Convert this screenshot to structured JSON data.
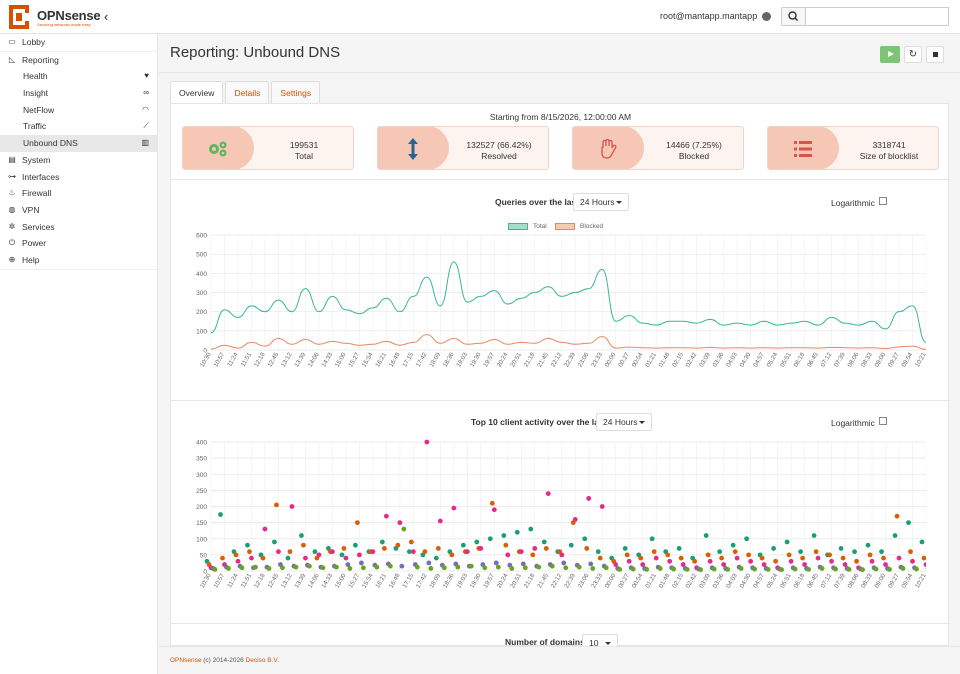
{
  "header": {
    "brand": "OPNsense",
    "brand_tagline": "Securing networks made easy",
    "user": "root@mantapp.mantapp",
    "search_placeholder": ""
  },
  "sidebar": {
    "items": [
      {
        "label": "Lobby",
        "icon": "laptop-icon"
      },
      {
        "label": "Reporting",
        "icon": "area-chart-icon"
      },
      {
        "label": "Health",
        "icon": "heartbeat-icon",
        "sub": true
      },
      {
        "label": "Insight",
        "icon": "binoculars-icon",
        "sub": true
      },
      {
        "label": "NetFlow",
        "icon": "rss-icon",
        "sub": true
      },
      {
        "label": "Traffic",
        "icon": "line-chart-icon",
        "sub": true
      },
      {
        "label": "Unbound DNS",
        "icon": "bar-chart-icon",
        "sub": true,
        "active": true
      },
      {
        "label": "System",
        "icon": "server-icon"
      },
      {
        "label": "Interfaces",
        "icon": "sitemap-icon"
      },
      {
        "label": "Firewall",
        "icon": "fire-icon"
      },
      {
        "label": "VPN",
        "icon": "globe-icon"
      },
      {
        "label": "Services",
        "icon": "cog-icon"
      },
      {
        "label": "Power",
        "icon": "plug-icon"
      },
      {
        "label": "Help",
        "icon": "lifebuoy-icon"
      }
    ]
  },
  "page": {
    "title": "Reporting: Unbound DNS",
    "tabs": [
      "Overview",
      "Details",
      "Settings"
    ],
    "active_tab": "Overview",
    "starting_from": "Starting from 8/15/2026, 12:00:00 AM"
  },
  "cards": [
    {
      "value": "199531",
      "label": "Total",
      "icon": "cogs-icon",
      "icon_color": "#5cb85c"
    },
    {
      "value": "132527 (66.42%)",
      "label": "Resolved",
      "icon": "arrows-v-icon",
      "icon_color": "#2a6496"
    },
    {
      "value": "14466 (7.25%)",
      "label": "Blocked",
      "icon": "hand-stop-icon",
      "icon_color": "#d9534f"
    },
    {
      "value": "3318741",
      "label": "Size of blocklist",
      "icon": "list-icon",
      "icon_color": "#d9534f"
    }
  ],
  "queries_section": {
    "label": "Queries over the last",
    "range": "24 Hours",
    "log_label": "Logarithmic",
    "log_checked": false
  },
  "clients_section": {
    "label": "Top 10 client activity over the last",
    "range": "24 Hours",
    "log_label": "Logarithmic",
    "log_checked": false
  },
  "domains_section": {
    "label": "Number of domains",
    "value": "10"
  },
  "footer": {
    "product": "OPNsense",
    "copyright": "(c) 2014-2026",
    "vendor": "Deciso B.V."
  },
  "colors": {
    "total": "#3ab795",
    "blocked": "#e8895d",
    "accent": "#d94f00"
  },
  "chart_data": [
    {
      "type": "line",
      "title": "Queries over the last",
      "x": [
        "10:30",
        "10:57",
        "11:24",
        "11:51",
        "12:18",
        "12:45",
        "13:12",
        "13:39",
        "14:06",
        "14:33",
        "15:00",
        "15:27",
        "15:54",
        "16:21",
        "16:48",
        "17:15",
        "17:42",
        "18:09",
        "18:36",
        "19:03",
        "19:30",
        "19:57",
        "20:24",
        "20:51",
        "21:18",
        "21:45",
        "22:12",
        "22:39",
        "23:06",
        "23:33",
        "00:00",
        "00:27",
        "00:54",
        "01:21",
        "01:48",
        "02:15",
        "02:42",
        "03:09",
        "03:36",
        "04:03",
        "04:30",
        "04:57",
        "05:24",
        "05:51",
        "06:18",
        "06:45",
        "07:12",
        "07:39",
        "08:06",
        "08:33",
        "09:00",
        "09:27",
        "09:54",
        "10:21"
      ],
      "ylim": [
        0,
        600
      ],
      "yticks": [
        0,
        100,
        200,
        300,
        400,
        500,
        600
      ],
      "series": [
        {
          "name": "Total",
          "values": [
            90,
            210,
            170,
            230,
            200,
            260,
            200,
            320,
            200,
            280,
            210,
            190,
            220,
            270,
            200,
            280,
            380,
            230,
            460,
            250,
            280,
            310,
            240,
            270,
            300,
            330,
            280,
            300,
            320,
            420,
            150,
            180,
            140,
            130,
            150,
            150,
            140,
            160,
            130,
            140,
            130,
            150,
            130,
            140,
            150,
            130,
            170,
            140,
            130,
            150,
            110,
            200,
            230,
            40
          ]
        },
        {
          "name": "Blocked",
          "values": [
            5,
            25,
            10,
            40,
            20,
            60,
            30,
            55,
            30,
            45,
            35,
            25,
            30,
            45,
            25,
            40,
            80,
            35,
            60,
            30,
            35,
            55,
            30,
            40,
            35,
            60,
            40,
            30,
            35,
            70,
            10,
            15,
            12,
            10,
            12,
            12,
            10,
            14,
            10,
            12,
            10,
            12,
            10,
            12,
            12,
            10,
            14,
            12,
            10,
            12,
            8,
            16,
            20,
            3
          ]
        }
      ]
    },
    {
      "type": "scatter",
      "title": "Top 10 client activity over the last",
      "x": [
        "10:30",
        "10:57",
        "11:24",
        "11:51",
        "12:18",
        "12:45",
        "13:12",
        "13:39",
        "14:06",
        "14:33",
        "15:00",
        "15:27",
        "15:54",
        "16:21",
        "16:48",
        "17:15",
        "17:42",
        "18:09",
        "18:36",
        "19:03",
        "19:30",
        "19:57",
        "20:24",
        "20:51",
        "21:18",
        "21:45",
        "22:12",
        "22:39",
        "23:06",
        "23:33",
        "00:00",
        "00:27",
        "00:54",
        "01:21",
        "01:48",
        "02:15",
        "02:42",
        "03:09",
        "03:36",
        "04:03",
        "04:30",
        "04:57",
        "05:24",
        "05:51",
        "06:18",
        "06:45",
        "07:12",
        "07:39",
        "08:06",
        "08:33",
        "09:00",
        "09:27",
        "09:54",
        "10:21"
      ],
      "ylim": [
        0,
        400
      ],
      "yticks": [
        0,
        50,
        100,
        150,
        200,
        250,
        300,
        350,
        400
      ],
      "series": [
        {
          "name": "",
          "color": "#1a9e77",
          "values": [
            30,
            175,
            60,
            80,
            50,
            90,
            40,
            110,
            60,
            70,
            50,
            80,
            60,
            90,
            70,
            60,
            50,
            40,
            60,
            80,
            90,
            100,
            110,
            120,
            130,
            90,
            60,
            80,
            100,
            60,
            40,
            70,
            50,
            100,
            60,
            70,
            40,
            110,
            60,
            80,
            100,
            50,
            70,
            90,
            60,
            110,
            50,
            70,
            60,
            80,
            60,
            110,
            150,
            90
          ]
        },
        {
          "name": "",
          "color": "#d95f02",
          "values": [
            20,
            40,
            50,
            60,
            40,
            205,
            60,
            80,
            40,
            60,
            70,
            150,
            60,
            70,
            80,
            90,
            60,
            70,
            50,
            60,
            70,
            210,
            80,
            60,
            50,
            70,
            60,
            150,
            70,
            40,
            30,
            50,
            40,
            60,
            50,
            40,
            30,
            50,
            40,
            60,
            50,
            40,
            30,
            50,
            40,
            60,
            50,
            40,
            30,
            50,
            40,
            170,
            60,
            40
          ]
        },
        {
          "name": "",
          "color": "#e7298a",
          "values": [
            10,
            20,
            30,
            40,
            130,
            60,
            200,
            40,
            50,
            60,
            40,
            50,
            60,
            170,
            150,
            60,
            400,
            155,
            195,
            60,
            70,
            190,
            50,
            60,
            70,
            240,
            50,
            160,
            225,
            200,
            20,
            30,
            20,
            40,
            30,
            20,
            10,
            30,
            20,
            40,
            30,
            20,
            10,
            30,
            20,
            40,
            30,
            20,
            10,
            30,
            20,
            40,
            30,
            20
          ]
        },
        {
          "name": "",
          "color": "#7570b3",
          "values": [
            8,
            12,
            15,
            10,
            12,
            20,
            15,
            18,
            12,
            15,
            20,
            25,
            18,
            22,
            15,
            20,
            25,
            18,
            22,
            15,
            20,
            25,
            18,
            22,
            15,
            20,
            25,
            18,
            22,
            15,
            8,
            10,
            8,
            12,
            10,
            8,
            6,
            10,
            8,
            12,
            10,
            8,
            6,
            10,
            8,
            12,
            10,
            8,
            6,
            10,
            8,
            12,
            10,
            8
          ]
        },
        {
          "name": "",
          "color": "#66a61e",
          "values": [
            5,
            8,
            10,
            12,
            8,
            10,
            12,
            15,
            10,
            12,
            8,
            10,
            12,
            15,
            130,
            12,
            8,
            10,
            12,
            15,
            10,
            12,
            8,
            10,
            12,
            15,
            10,
            12,
            8,
            10,
            5,
            6,
            5,
            8,
            6,
            5,
            4,
            6,
            5,
            8,
            6,
            5,
            4,
            6,
            5,
            8,
            6,
            5,
            4,
            6,
            5,
            8,
            6,
            5
          ]
        }
      ]
    }
  ]
}
